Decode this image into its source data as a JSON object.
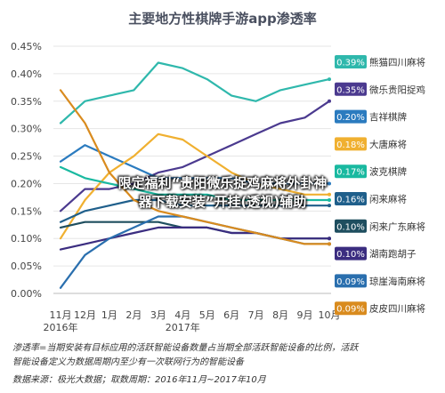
{
  "chart_data": {
    "type": "line",
    "title": "主要地方性棋牌手游app渗透率",
    "x_labels": [
      "11月",
      "12月",
      "1月",
      "2月",
      "3月",
      "4月",
      "5月",
      "6月",
      "7月",
      "8月",
      "9月",
      "10月"
    ],
    "year_labels": [
      {
        "text": "2016年",
        "index": 0
      },
      {
        "text": "2017年",
        "index": 5
      }
    ],
    "y_ticks": [
      "0.00%",
      "0.05%",
      "0.10%",
      "0.15%",
      "0.20%",
      "0.25%",
      "0.30%",
      "0.35%",
      "0.40%",
      "0.45%"
    ],
    "ylim": [
      0,
      0.45
    ],
    "grid": true,
    "legend_position": "right",
    "series": [
      {
        "name": "熊猫四川麻将",
        "badge": "0.39%",
        "color": "#2fb8ac",
        "values": [
          0.31,
          0.35,
          0.36,
          0.37,
          0.42,
          0.41,
          0.39,
          0.36,
          0.35,
          0.37,
          0.38,
          0.39
        ]
      },
      {
        "name": "微乐贵阳捉鸡",
        "badge": "0.35%",
        "color": "#4b3a8f",
        "values": [
          0.15,
          0.19,
          0.19,
          0.2,
          0.22,
          0.23,
          0.25,
          0.27,
          0.29,
          0.31,
          0.32,
          0.35
        ]
      },
      {
        "name": "吉祥棋牌",
        "badge": "0.20%",
        "color": "#2b7bbf",
        "values": [
          0.24,
          0.27,
          0.25,
          0.23,
          0.21,
          0.21,
          0.21,
          0.21,
          0.2,
          0.2,
          0.2,
          0.2
        ]
      },
      {
        "name": "大唐麻将",
        "badge": "0.18%",
        "color": "#f0b030",
        "values": [
          0.1,
          0.17,
          0.22,
          0.25,
          0.29,
          0.28,
          0.25,
          0.22,
          0.2,
          0.19,
          0.18,
          0.18
        ]
      },
      {
        "name": "波克棋牌",
        "badge": "0.17%",
        "color": "#19b9a0",
        "values": [
          0.23,
          0.21,
          0.2,
          0.19,
          0.18,
          0.18,
          0.18,
          0.17,
          0.17,
          0.17,
          0.17,
          0.17
        ]
      },
      {
        "name": "闲来麻将",
        "badge": "0.16%",
        "color": "#1f5f8b",
        "values": [
          0.13,
          0.15,
          0.16,
          0.17,
          0.17,
          0.16,
          0.16,
          0.16,
          0.16,
          0.16,
          0.16,
          0.16
        ]
      },
      {
        "name": "闲来广东麻将",
        "badge": "0.10%",
        "color": "#1e4e5f",
        "values": [
          0.12,
          0.13,
          0.13,
          0.13,
          0.13,
          0.12,
          0.12,
          0.11,
          0.11,
          0.1,
          0.1,
          0.1
        ]
      },
      {
        "name": "湖南跑胡子",
        "badge": "0.10%",
        "color": "#3b2d80",
        "values": [
          0.08,
          0.09,
          0.1,
          0.11,
          0.12,
          0.12,
          0.12,
          0.11,
          0.11,
          0.1,
          0.1,
          0.1
        ]
      },
      {
        "name": "琼崖海南麻将",
        "badge": "0.09%",
        "color": "#2a6fae",
        "values": [
          0.01,
          0.07,
          0.1,
          0.12,
          0.14,
          0.14,
          0.13,
          0.12,
          0.11,
          0.1,
          0.09,
          0.09
        ]
      },
      {
        "name": "皮皮四川麻将",
        "badge": "0.09%",
        "color": "#d98b1e",
        "values": [
          0.37,
          0.31,
          0.22,
          0.17,
          0.15,
          0.14,
          0.13,
          0.12,
          0.11,
          0.1,
          0.09,
          0.09
        ]
      }
    ]
  },
  "overlay_text": {
    "line1": "限定福利“贵阳微乐捉鸡麻将外卦神",
    "line2": "器下载安装”开挂(透视)辅助"
  },
  "notes": {
    "definition_1": "渗透率=当期安装有目标应用的活跃智能设备数量占当期全部活跃智能设备的比例，活跃",
    "definition_2": "智能设备定义为数据周期内至少有一次联网行为的智能设备",
    "source": "数据来源：极光大数据；取数周期：2016年11月~2017年10月"
  }
}
